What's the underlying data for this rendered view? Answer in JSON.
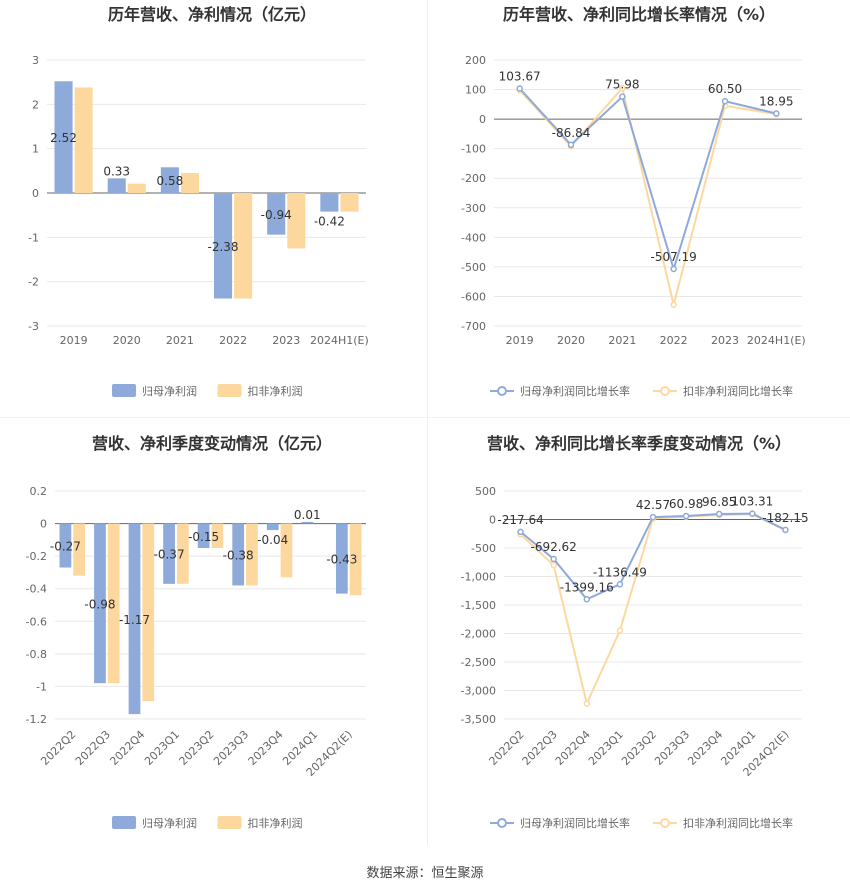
{
  "colors": {
    "primary": "#8eaadb",
    "secondary": "#fdd89e",
    "title": "#333333",
    "axis_text": "#666666",
    "grid": "#e8e8e8",
    "axis_line": "#666666",
    "label": "#333333"
  },
  "source": "数据来源：恒生聚源",
  "chart_data": [
    {
      "type": "bar",
      "title": "历年营收、净利情况（亿元）",
      "categories": [
        "2019",
        "2020",
        "2021",
        "2022",
        "2023",
        "2024H1(E)"
      ],
      "series": [
        {
          "name": "归母净利润",
          "values": [
            2.52,
            0.33,
            0.58,
            -2.38,
            -0.94,
            -0.42
          ]
        },
        {
          "name": "扣非净利润",
          "values": [
            2.38,
            0.21,
            0.45,
            -2.38,
            -1.25,
            -0.42
          ]
        }
      ],
      "data_labels": [
        "2.52",
        "0.33",
        "0.58",
        "-2.38",
        "-0.94",
        "-0.42"
      ],
      "yticks": [
        3,
        2,
        1,
        0,
        -1,
        -2,
        -3
      ],
      "ylim": [
        -3,
        3
      ],
      "legend": "bottom"
    },
    {
      "type": "line",
      "title": "历年营收、净利同比增长率情况（%）",
      "categories": [
        "2019",
        "2020",
        "2021",
        "2022",
        "2023",
        "2024H1(E)"
      ],
      "series": [
        {
          "name": "归母净利润同比增长率",
          "values": [
            103.67,
            -86.84,
            75.98,
            -507.19,
            60.5,
            18.95
          ]
        },
        {
          "name": "扣非净利润同比增长率",
          "values": [
            98,
            -92,
            105,
            -628,
            45,
            17
          ]
        }
      ],
      "data_labels": [
        "103.67",
        "-86.84",
        "75.98",
        "-507.19",
        "60.50",
        "18.95"
      ],
      "yticks": [
        200,
        100,
        0,
        -100,
        -200,
        -300,
        -400,
        -500,
        -600,
        -700
      ],
      "ylim": [
        -700,
        200
      ],
      "legend": "bottom"
    },
    {
      "type": "bar",
      "title": "营收、净利季度变动情况（亿元）",
      "categories": [
        "2022Q2",
        "2022Q3",
        "2022Q4",
        "2023Q1",
        "2023Q2",
        "2023Q3",
        "2023Q4",
        "2024Q1",
        "2024Q2(E)"
      ],
      "series": [
        {
          "name": "归母净利润",
          "values": [
            -0.27,
            -0.98,
            -1.17,
            -0.37,
            -0.15,
            -0.38,
            -0.04,
            0.01,
            -0.43
          ]
        },
        {
          "name": "扣非净利润",
          "values": [
            -0.32,
            -0.98,
            -1.09,
            -0.37,
            -0.15,
            -0.38,
            -0.33,
            0.0,
            -0.44
          ]
        }
      ],
      "data_labels": [
        "-0.27",
        "-0.98",
        "-1.17",
        "-0.37",
        "-0.15",
        "-0.38",
        "-0.04",
        "0.01",
        "-0.43"
      ],
      "yticks": [
        "0.2",
        "0",
        "-0.2",
        "-0.4",
        "-0.6",
        "-0.8",
        "-1",
        "-1.2"
      ],
      "ylim": [
        -1.2,
        0.2
      ],
      "legend": "bottom"
    },
    {
      "type": "line",
      "title": "营收、净利同比增长率季度变动情况（%）",
      "categories": [
        "2022Q2",
        "2022Q3",
        "2022Q4",
        "2023Q1",
        "2023Q2",
        "2023Q3",
        "2023Q4",
        "2024Q1",
        "2024Q2(E)"
      ],
      "series": [
        {
          "name": "归母净利润同比增长率",
          "values": [
            -217.64,
            -692.62,
            -1399.16,
            -1136.49,
            42.57,
            60.98,
            96.85,
            103.31,
            -182.15
          ]
        },
        {
          "name": "扣非净利润同比增长率",
          "values": [
            -260,
            -800,
            -3230,
            -1950,
            20,
            50,
            80,
            95,
            -190
          ]
        }
      ],
      "data_labels": [
        "-217.64",
        "-692.62",
        "-1399.16",
        "-1136.49",
        "42.57",
        "60.98",
        "96.85",
        "103.31",
        "-182.15"
      ],
      "yticks": [
        "500",
        "0",
        "-500",
        "-1,000",
        "-1,500",
        "-2,000",
        "-2,500",
        "-3,000",
        "-3,500"
      ],
      "ylim": [
        -3500,
        500
      ],
      "legend": "bottom"
    }
  ]
}
